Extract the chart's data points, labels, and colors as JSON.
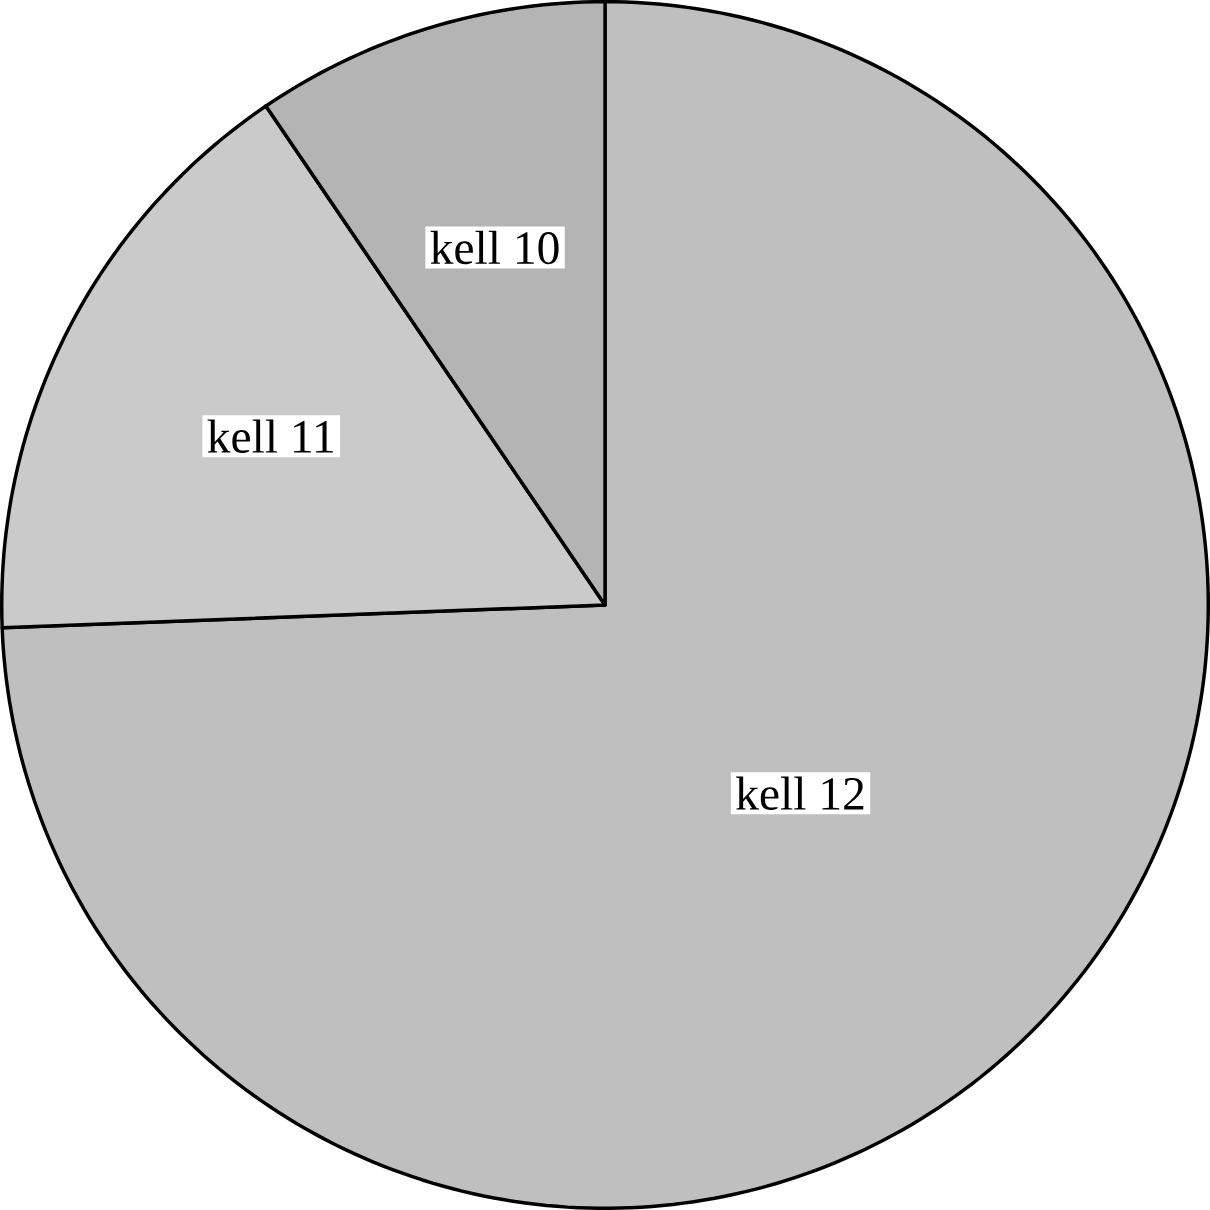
{
  "chart_data": {
    "type": "pie",
    "categories": [
      "kell 10",
      "kell 11",
      "kell 12"
    ],
    "values": [
      9.5,
      16.1,
      74.4
    ],
    "colors": [
      "#b4b4b4",
      "#cacaca",
      "#bfbfbf"
    ]
  }
}
